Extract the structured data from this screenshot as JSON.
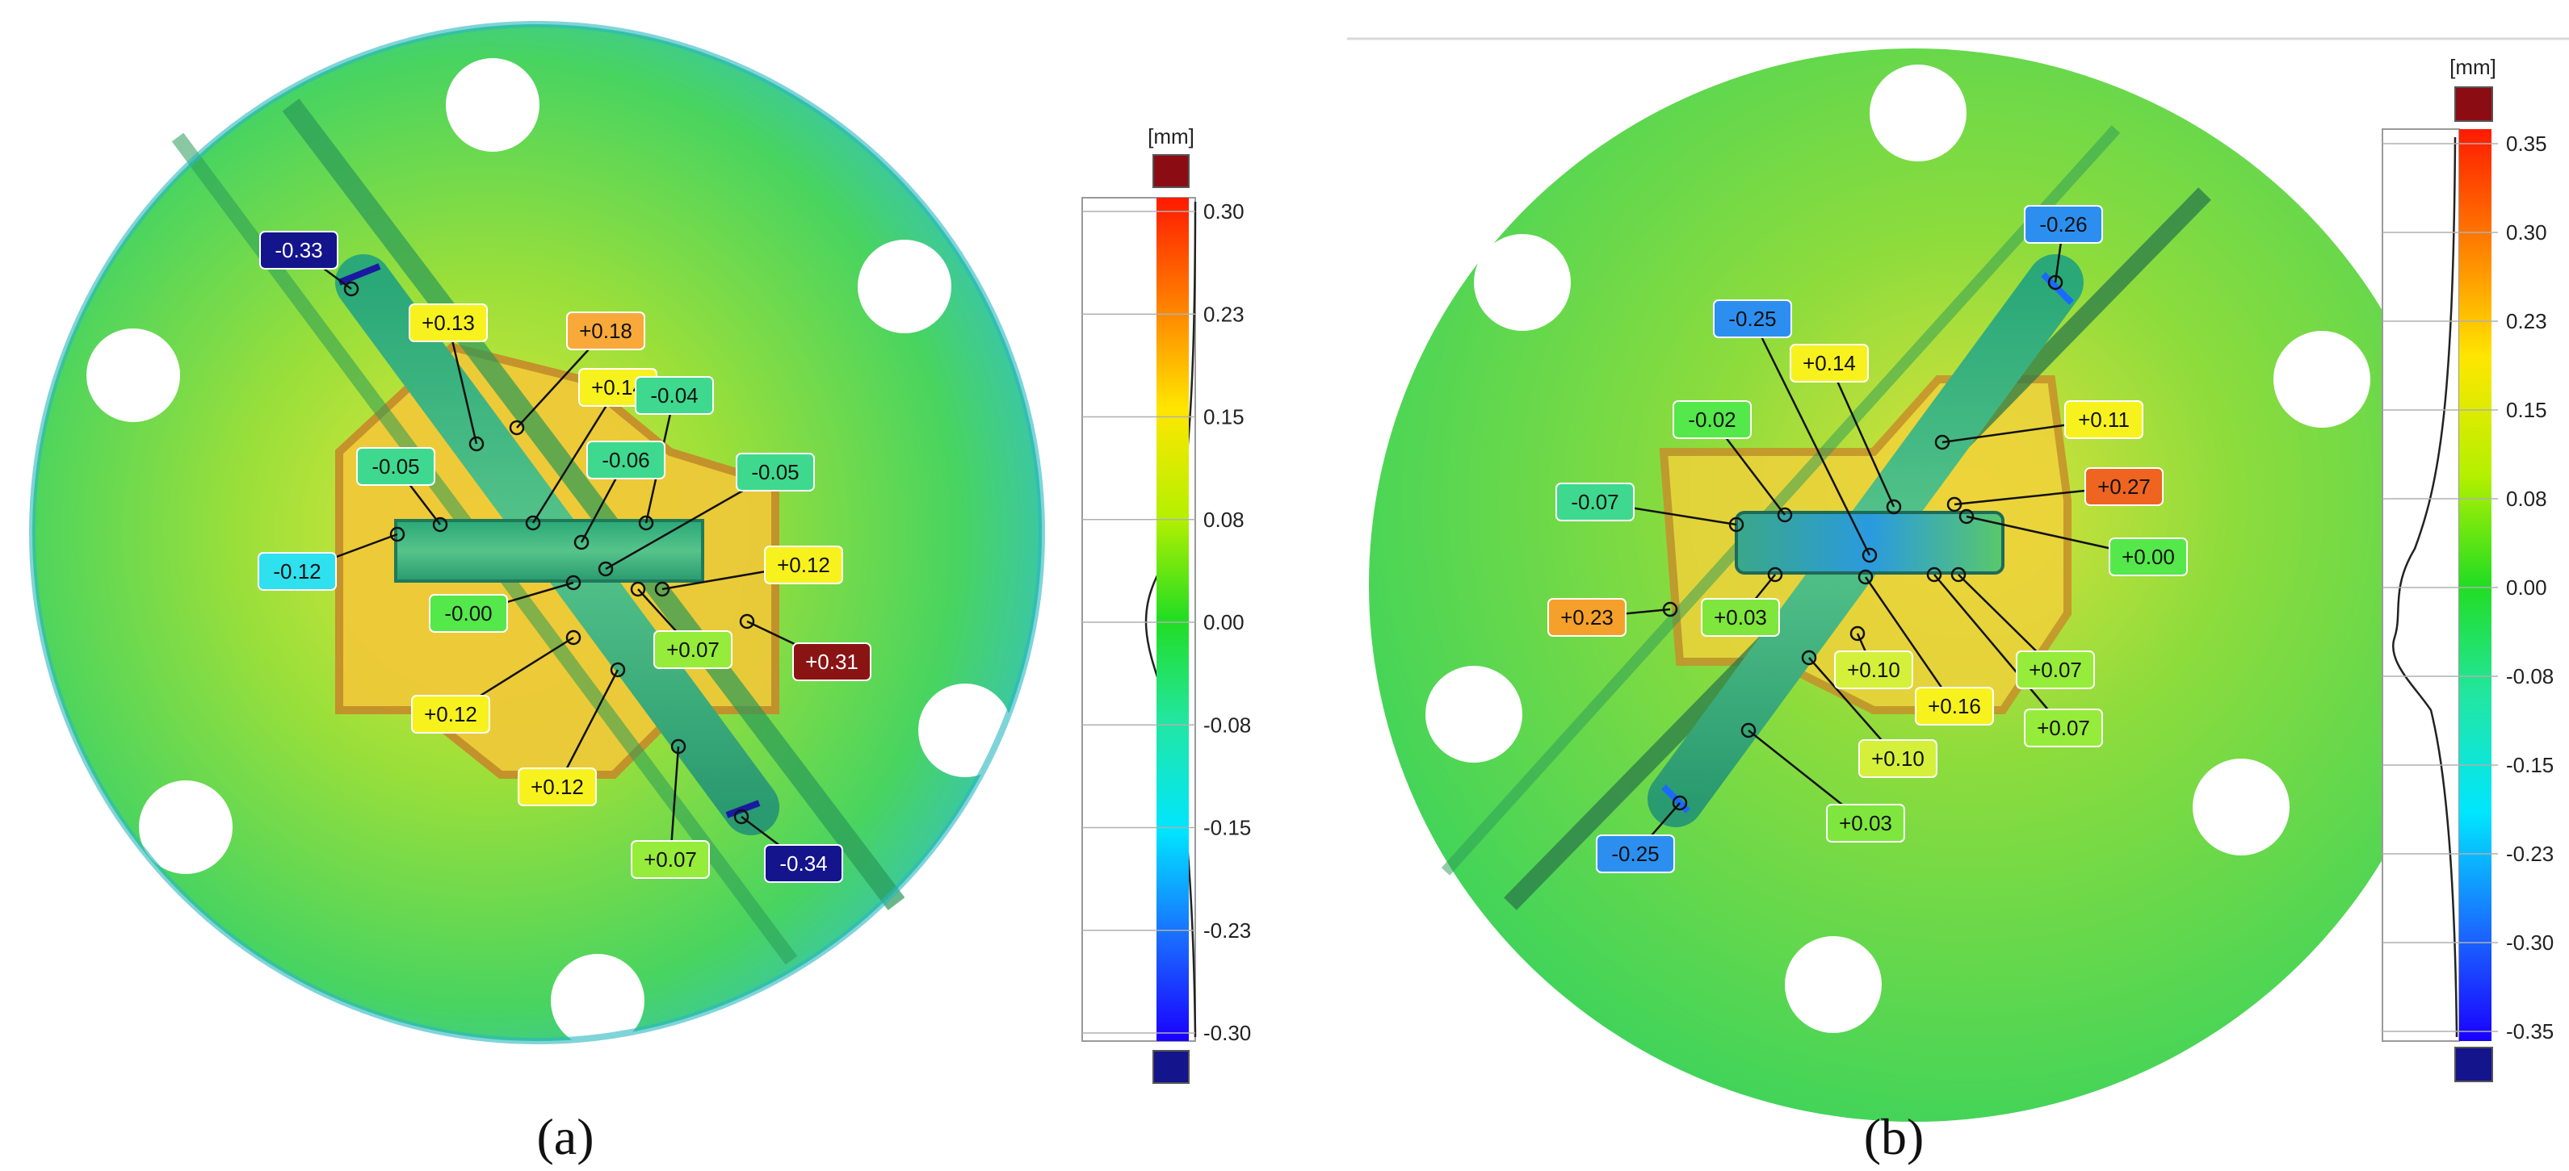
{
  "panels": [
    {
      "caption": "(a)",
      "unit": "[mm]",
      "scale_ticks": [
        "0.30",
        "0.23",
        "0.15",
        "0.08",
        "0.00",
        "-0.08",
        "-0.15",
        "-0.23",
        "-0.30"
      ],
      "callouts": [
        {
          "text": "-0.33",
          "color": "#14148c"
        },
        {
          "text": "+0.13",
          "color": "#f7f21e"
        },
        {
          "text": "+0.18",
          "color": "#f8a93a"
        },
        {
          "text": "+0.14",
          "color": "#f7f21e"
        },
        {
          "text": "-0.04",
          "color": "#3ed98e"
        },
        {
          "text": "-0.05",
          "color": "#3ed98e"
        },
        {
          "text": "-0.06",
          "color": "#3ed98e"
        },
        {
          "text": "-0.05",
          "color": "#3ed98e"
        },
        {
          "text": "-0.12",
          "color": "#2fe1ee"
        },
        {
          "text": "+0.12",
          "color": "#f7f21e"
        },
        {
          "text": "-0.00",
          "color": "#54e84a"
        },
        {
          "text": "+0.07",
          "color": "#96ec3a"
        },
        {
          "text": "+0.31",
          "color": "#8a1414"
        },
        {
          "text": "+0.12",
          "color": "#f7f21e"
        },
        {
          "text": "+0.12",
          "color": "#f7f21e"
        },
        {
          "text": "+0.07",
          "color": "#96ec3a"
        },
        {
          "text": "-0.34",
          "color": "#14148c"
        }
      ]
    },
    {
      "caption": "(b)",
      "unit": "[mm]",
      "scale_ticks": [
        "0.35",
        "0.30",
        "0.23",
        "0.15",
        "0.08",
        "0.00",
        "-0.08",
        "-0.15",
        "-0.23",
        "-0.30",
        "-0.35"
      ],
      "callouts": [
        {
          "text": "-0.26",
          "color": "#2c8ff0"
        },
        {
          "text": "-0.25",
          "color": "#2c8ff0"
        },
        {
          "text": "+0.14",
          "color": "#f7f21e"
        },
        {
          "text": "-0.02",
          "color": "#54e84a"
        },
        {
          "text": "+0.11",
          "color": "#f7f21e"
        },
        {
          "text": "+0.27",
          "color": "#ef6420"
        },
        {
          "text": "-0.07",
          "color": "#3ed98e"
        },
        {
          "text": "+0.00",
          "color": "#54e84a"
        },
        {
          "text": "+0.23",
          "color": "#f5a02a"
        },
        {
          "text": "+0.03",
          "color": "#7ee63c"
        },
        {
          "text": "+0.07",
          "color": "#96ec3a"
        },
        {
          "text": "+0.10",
          "color": "#d4f03a"
        },
        {
          "text": "+0.16",
          "color": "#f7f21e"
        },
        {
          "text": "+0.07",
          "color": "#96ec3a"
        },
        {
          "text": "+0.10",
          "color": "#d4f03a"
        },
        {
          "text": "+0.03",
          "color": "#7ee63c"
        },
        {
          "text": "-0.25",
          "color": "#2c8ff0"
        }
      ]
    }
  ]
}
